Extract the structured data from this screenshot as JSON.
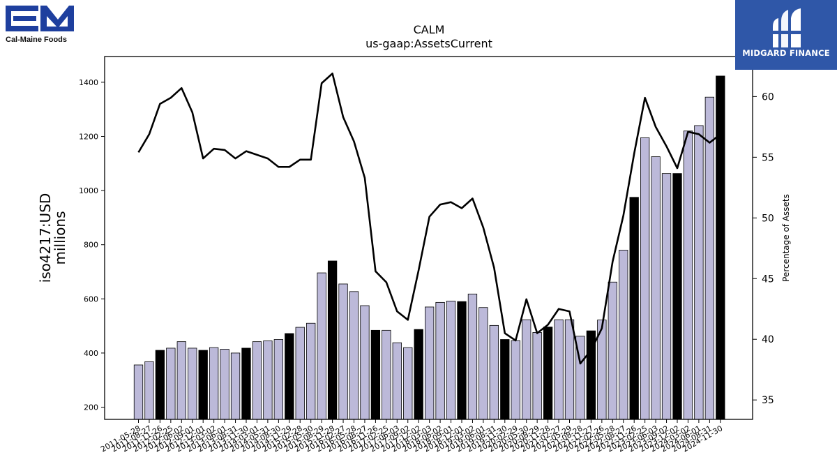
{
  "logos": {
    "left_text": "Cal-Maine Foods",
    "right_text": "MIDGARD FINANCE"
  },
  "chart_data": {
    "type": "bar",
    "title": "CALM",
    "subtitle": "us-gaap:AssetsCurrent",
    "ylabel": "iso4217:USD\nmillions",
    "y2label": "Percentage of Assets",
    "ylim": [
      155,
      1495
    ],
    "y2lim": [
      33.4,
      63.3
    ],
    "yticks": [
      200,
      400,
      600,
      800,
      1000,
      1200,
      1400
    ],
    "y2ticks": [
      35,
      40,
      45,
      50,
      55,
      60
    ],
    "bar_colors": {
      "quarter": "#bcb9d9",
      "fiscal_year_end": "#000000"
    },
    "grid": false,
    "categories": [
      "2011-05-28",
      "2011-08-27",
      "2011-11-26",
      "2012-02-25",
      "2012-06-02",
      "2012-09-01",
      "2012-12-01",
      "2013-03-02",
      "2013-06-01",
      "2013-08-31",
      "2013-11-30",
      "2014-03-01",
      "2014-05-31",
      "2014-08-30",
      "2014-11-29",
      "2015-02-28",
      "2015-05-30",
      "2015-08-29",
      "2015-11-28",
      "2016-02-27",
      "2016-05-28",
      "2016-08-27",
      "2016-11-26",
      "2017-02-25",
      "2017-06-03",
      "2017-09-02",
      "2017-12-02",
      "2018-03-03",
      "2018-06-02",
      "2018-09-01",
      "2018-12-01",
      "2019-03-02",
      "2019-06-01",
      "2019-08-31",
      "2019-11-30",
      "2020-02-29",
      "2020-05-30",
      "2020-08-29",
      "2020-11-28",
      "2021-02-27",
      "2021-05-29",
      "2021-08-28",
      "2021-11-27",
      "2022-02-26",
      "2022-05-28",
      "2022-08-27",
      "2022-11-26",
      "2023-02-25",
      "2023-06-03",
      "2023-09-02",
      "2023-12-02",
      "2024-03-02",
      "2024-06-01",
      "2024-08-31",
      "2024-11-30"
    ],
    "xticklabels": [
      "2011-05-28",
      "2011-08-27",
      "2011-11-26",
      "2012-02-25",
      "2012-06-02",
      "2012-09-01",
      "2012-12-01",
      "2013-03-02",
      "2013-06-01",
      "2013-08-31",
      "2013-11-30",
      "2014-03-01",
      "2014-05-31",
      "2014-08-30",
      "2014-11-29",
      "2015-02-28",
      "2015-05-30",
      "2015-08-29",
      "2015-11-28",
      "2016-02-27",
      "2016-05-28",
      "2016-08-27",
      "2016-11-26",
      "2017-02-25",
      "2017-06-03",
      "2017-09-02",
      "2017-12-02",
      "2018-03-03",
      "2018-06-02",
      "2018-09-01",
      "2018-12-01",
      "2019-03-02",
      "2019-06-01",
      "2019-08-31",
      "2019-11-30",
      "2020-02-29",
      "2020-05-30",
      "2020-08-29",
      "2020-11-28",
      "2021-02-27",
      "2021-05-29",
      "2021-08-28",
      "2021-11-27",
      "2022-02-26",
      "2022-05-28",
      "2022-08-27",
      "2022-11-26",
      "2023-02-25",
      "2023-06-03",
      "2023-09-02",
      "2023-12-02",
      "2024-03-02",
      "2024-06-01",
      "2024-08-31",
      "2024-11-30"
    ],
    "fiscal_year_end_flags": [
      false,
      false,
      true,
      false,
      false,
      false,
      true,
      false,
      false,
      false,
      true,
      false,
      false,
      false,
      true,
      false,
      false,
      false,
      true,
      false,
      false,
      false,
      true,
      false,
      false,
      false,
      true,
      false,
      false,
      false,
      true,
      false,
      false,
      false,
      true,
      false,
      false,
      false,
      true,
      false,
      false,
      false,
      true,
      false,
      false,
      false,
      true,
      false,
      false,
      false,
      true,
      false,
      false,
      false,
      true
    ],
    "series": [
      {
        "axis": "left",
        "values": [
          356,
          368,
          410,
          418,
          442,
          418,
          410,
          420,
          414,
          400,
          418,
          442,
          445,
          450,
          472,
          495,
          510,
          696,
          740,
          655,
          627,
          575,
          484,
          484,
          438,
          420,
          487,
          570,
          587,
          592,
          590,
          618,
          568,
          502,
          450,
          446,
          523,
          476,
          496,
          523,
          523,
          462,
          482,
          522,
          662,
          780,
          975,
          1195,
          1125,
          1063,
          1063,
          1220,
          1240,
          1345,
          1423
        ]
      },
      {
        "axis": "right",
        "values": [
          55.4,
          56.9,
          59.4,
          59.9,
          60.7,
          58.7,
          54.9,
          55.7,
          55.6,
          54.9,
          55.5,
          55.2,
          54.9,
          54.2,
          54.2,
          54.8,
          54.8,
          61.1,
          61.9,
          58.3,
          56.3,
          53.3,
          45.6,
          44.7,
          42.3,
          41.6,
          45.7,
          50.1,
          51.1,
          51.3,
          50.8,
          51.6,
          49.2,
          45.9,
          40.5,
          39.9,
          43.3,
          40.5,
          41.2,
          42.5,
          42.3,
          38.0,
          39.1,
          40.9,
          46.4,
          50.2,
          55.3,
          59.9,
          57.5,
          55.9,
          54.1,
          57.1,
          56.9,
          56.2,
          56.9
        ]
      }
    ]
  }
}
